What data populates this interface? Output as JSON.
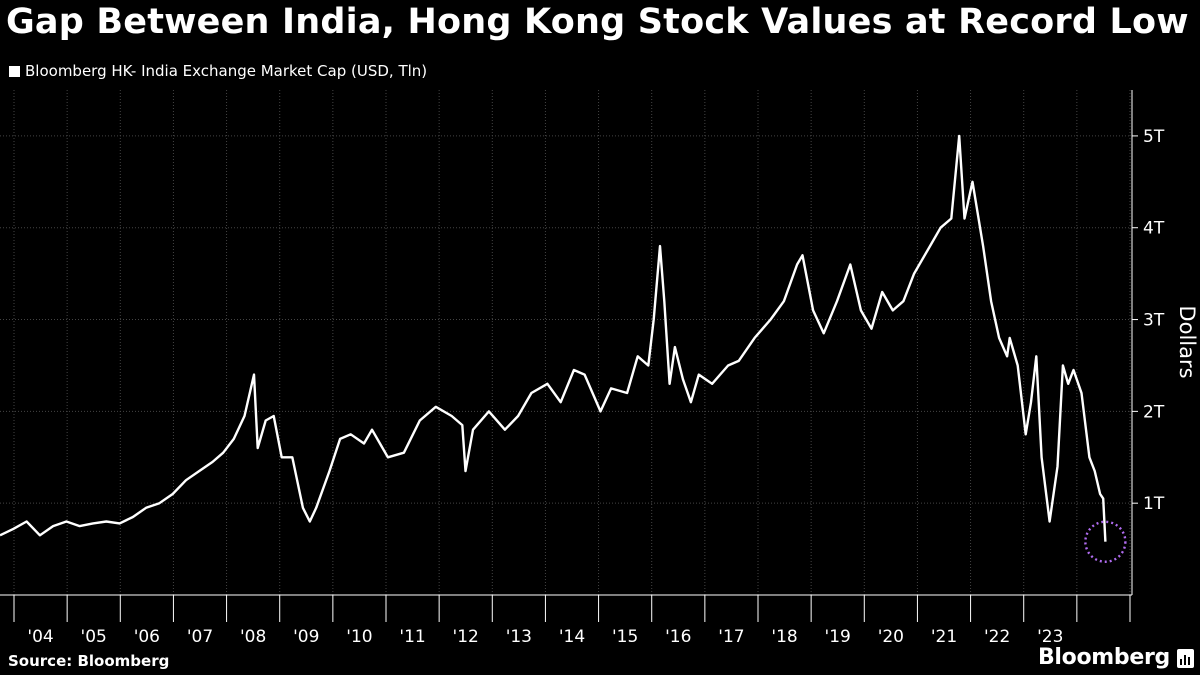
{
  "title": "Gap Between India, Hong Kong Stock Values at Record Low",
  "legend": {
    "label": "Bloomberg HK- India Exchange Market Cap (USD, Tln)",
    "color": "#ffffff"
  },
  "footer": {
    "source": "Source: Bloomberg",
    "brand": "Bloomberg"
  },
  "colors": {
    "background": "#000000",
    "line": "#ffffff",
    "grid": "#444444",
    "highlight": "#b06cf0"
  },
  "chart_data": {
    "type": "line",
    "title": "Gap Between India, Hong Kong Stock Values at Record Low",
    "ylabel": "Dollars",
    "xlabel": "",
    "xlim": [
      2003.0,
      2024.0
    ],
    "ylim": [
      0,
      5.5
    ],
    "grid": true,
    "y_axis_side": "right",
    "y_ticks": [
      {
        "value": 1,
        "label": "1T"
      },
      {
        "value": 2,
        "label": "2T"
      },
      {
        "value": 3,
        "label": "3T"
      },
      {
        "value": 4,
        "label": "4T"
      },
      {
        "value": 5,
        "label": "5T"
      }
    ],
    "x_tick_labels": [
      "'04",
      "'05",
      "'06",
      "'07",
      "'08",
      "'09",
      "'10",
      "'11",
      "'12",
      "'13",
      "'14",
      "'15",
      "'16",
      "'17",
      "'18",
      "'19",
      "'20",
      "'21",
      "'22",
      "'23"
    ],
    "series": [
      {
        "name": "Bloomberg HK- India Exchange Market Cap (USD, Tln)",
        "x": [
          2003.0,
          2003.25,
          2003.5,
          2003.75,
          2004.0,
          2004.25,
          2004.5,
          2004.75,
          2005.0,
          2005.25,
          2005.5,
          2005.75,
          2006.0,
          2006.25,
          2006.5,
          2006.75,
          2007.0,
          2007.2,
          2007.4,
          2007.6,
          2007.78,
          2007.85,
          2008.0,
          2008.15,
          2008.3,
          2008.5,
          2008.7,
          2008.83,
          2008.95,
          2009.2,
          2009.4,
          2009.6,
          2009.85,
          2010.0,
          2010.3,
          2010.6,
          2010.9,
          2011.2,
          2011.5,
          2011.7,
          2011.76,
          2011.9,
          2012.2,
          2012.5,
          2012.75,
          2013.0,
          2013.3,
          2013.55,
          2013.8,
          2014.0,
          2014.3,
          2014.5,
          2014.8,
          2015.0,
          2015.2,
          2015.3,
          2015.42,
          2015.5,
          2015.6,
          2015.7,
          2015.85,
          2016.0,
          2016.15,
          2016.4,
          2016.7,
          2016.9,
          2017.2,
          2017.5,
          2017.75,
          2018.0,
          2018.1,
          2018.3,
          2018.5,
          2018.75,
          2019.0,
          2019.2,
          2019.4,
          2019.6,
          2019.8,
          2020.0,
          2020.2,
          2020.5,
          2020.7,
          2020.9,
          2021.05,
          2021.15,
          2021.3,
          2021.5,
          2021.65,
          2021.8,
          2021.95,
          2022.0,
          2022.15,
          2022.3,
          2022.4,
          2022.5,
          2022.6,
          2022.75,
          2022.9,
          2023.0,
          2023.1,
          2023.2,
          2023.35,
          2023.5,
          2023.6,
          2023.7,
          2023.76,
          2023.8
        ],
        "values": [
          0.65,
          0.72,
          0.8,
          0.65,
          0.75,
          0.8,
          0.75,
          0.78,
          0.8,
          0.78,
          0.85,
          0.95,
          1.0,
          1.1,
          1.25,
          1.35,
          1.45,
          1.55,
          1.7,
          1.95,
          2.4,
          1.6,
          1.9,
          1.95,
          1.5,
          1.5,
          0.95,
          0.8,
          0.95,
          1.35,
          1.7,
          1.75,
          1.65,
          1.8,
          1.5,
          1.55,
          1.9,
          2.05,
          1.95,
          1.85,
          1.35,
          1.8,
          2.0,
          1.8,
          1.95,
          2.2,
          2.3,
          2.1,
          2.45,
          2.4,
          2.0,
          2.25,
          2.2,
          2.6,
          2.5,
          3.0,
          3.8,
          3.2,
          2.3,
          2.7,
          2.35,
          2.1,
          2.4,
          2.3,
          2.5,
          2.55,
          2.8,
          3.0,
          3.2,
          3.6,
          3.7,
          3.1,
          2.85,
          3.2,
          3.6,
          3.1,
          2.9,
          3.3,
          3.1,
          3.2,
          3.5,
          3.8,
          4.0,
          4.1,
          5.0,
          4.1,
          4.5,
          3.8,
          3.2,
          2.8,
          2.6,
          2.8,
          2.5,
          1.75,
          2.1,
          2.6,
          1.5,
          0.8,
          1.4,
          2.5,
          2.3,
          2.45,
          2.2,
          1.5,
          1.35,
          1.1,
          1.05,
          0.58
        ]
      }
    ]
  }
}
